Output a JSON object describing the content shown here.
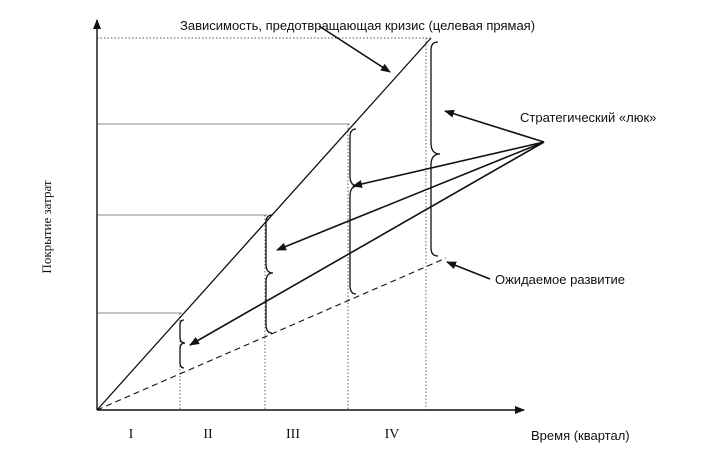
{
  "diagram": {
    "title": "Зависимость, предотвращающая кризис (целевая прямая)",
    "ylabel": "Покрытие затрат",
    "xlabel": "Время (квартал)",
    "quarters": [
      "I",
      "II",
      "III",
      "IV"
    ],
    "strategic_gap_label": "Стратегический «люк»",
    "expected_label": "Ожидаемое развитие"
  }
}
